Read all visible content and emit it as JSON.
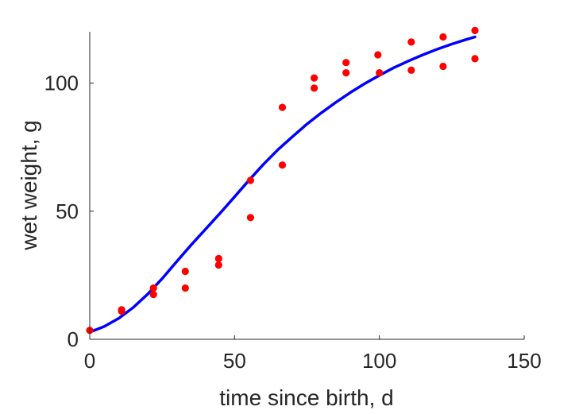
{
  "chart_data": {
    "type": "scatter",
    "title": "",
    "xlabel": "time since birth, d",
    "ylabel": "wet weight, g",
    "xlim": [
      0,
      150
    ],
    "ylim": [
      0,
      120
    ],
    "x_ticks": [
      "0",
      "50",
      "100",
      "150"
    ],
    "y_ticks": [
      "0",
      "50",
      "100"
    ],
    "grid": false,
    "legend": "none",
    "series": [
      {
        "kind": "scatter",
        "color": "#ff0000",
        "points": [
          [
            0,
            3.5
          ],
          [
            11,
            11.5
          ],
          [
            11,
            11.0
          ],
          [
            22,
            20.0
          ],
          [
            22,
            17.5
          ],
          [
            33,
            26.5
          ],
          [
            33,
            20.0
          ],
          [
            44.5,
            31.5
          ],
          [
            44.5,
            29.0
          ],
          [
            55.5,
            62.0
          ],
          [
            55.5,
            47.5
          ],
          [
            66.5,
            90.5
          ],
          [
            66.5,
            68.0
          ],
          [
            77.5,
            102.0
          ],
          [
            77.5,
            98.0
          ],
          [
            88.5,
            108.0
          ],
          [
            88.5,
            104.0
          ],
          [
            99.5,
            111.0
          ],
          [
            100,
            104.0
          ],
          [
            111,
            116.0
          ],
          [
            111,
            105.0
          ],
          [
            122,
            118.0
          ],
          [
            122,
            106.5
          ],
          [
            133,
            120.5
          ],
          [
            133,
            109.5
          ]
        ]
      },
      {
        "kind": "line",
        "color": "#0000ff",
        "points": [
          [
            0,
            2.8
          ],
          [
            5,
            5.0
          ],
          [
            10,
            8.2
          ],
          [
            15,
            12.4
          ],
          [
            20,
            17.6
          ],
          [
            25,
            23.7
          ],
          [
            30,
            30.3
          ],
          [
            35,
            36.8
          ],
          [
            40,
            43.0
          ],
          [
            45,
            49.2
          ],
          [
            50,
            55.6
          ],
          [
            55,
            62.1
          ],
          [
            60,
            68.3
          ],
          [
            65,
            74.0
          ],
          [
            70,
            79.1
          ],
          [
            75,
            84.0
          ],
          [
            80,
            88.4
          ],
          [
            85,
            92.5
          ],
          [
            90,
            96.3
          ],
          [
            95,
            99.8
          ],
          [
            100,
            103.0
          ],
          [
            105,
            106.0
          ],
          [
            110,
            108.6
          ],
          [
            115,
            111.0
          ],
          [
            120,
            113.2
          ],
          [
            125,
            115.2
          ],
          [
            130,
            117.0
          ],
          [
            133,
            118.0
          ]
        ]
      }
    ]
  }
}
